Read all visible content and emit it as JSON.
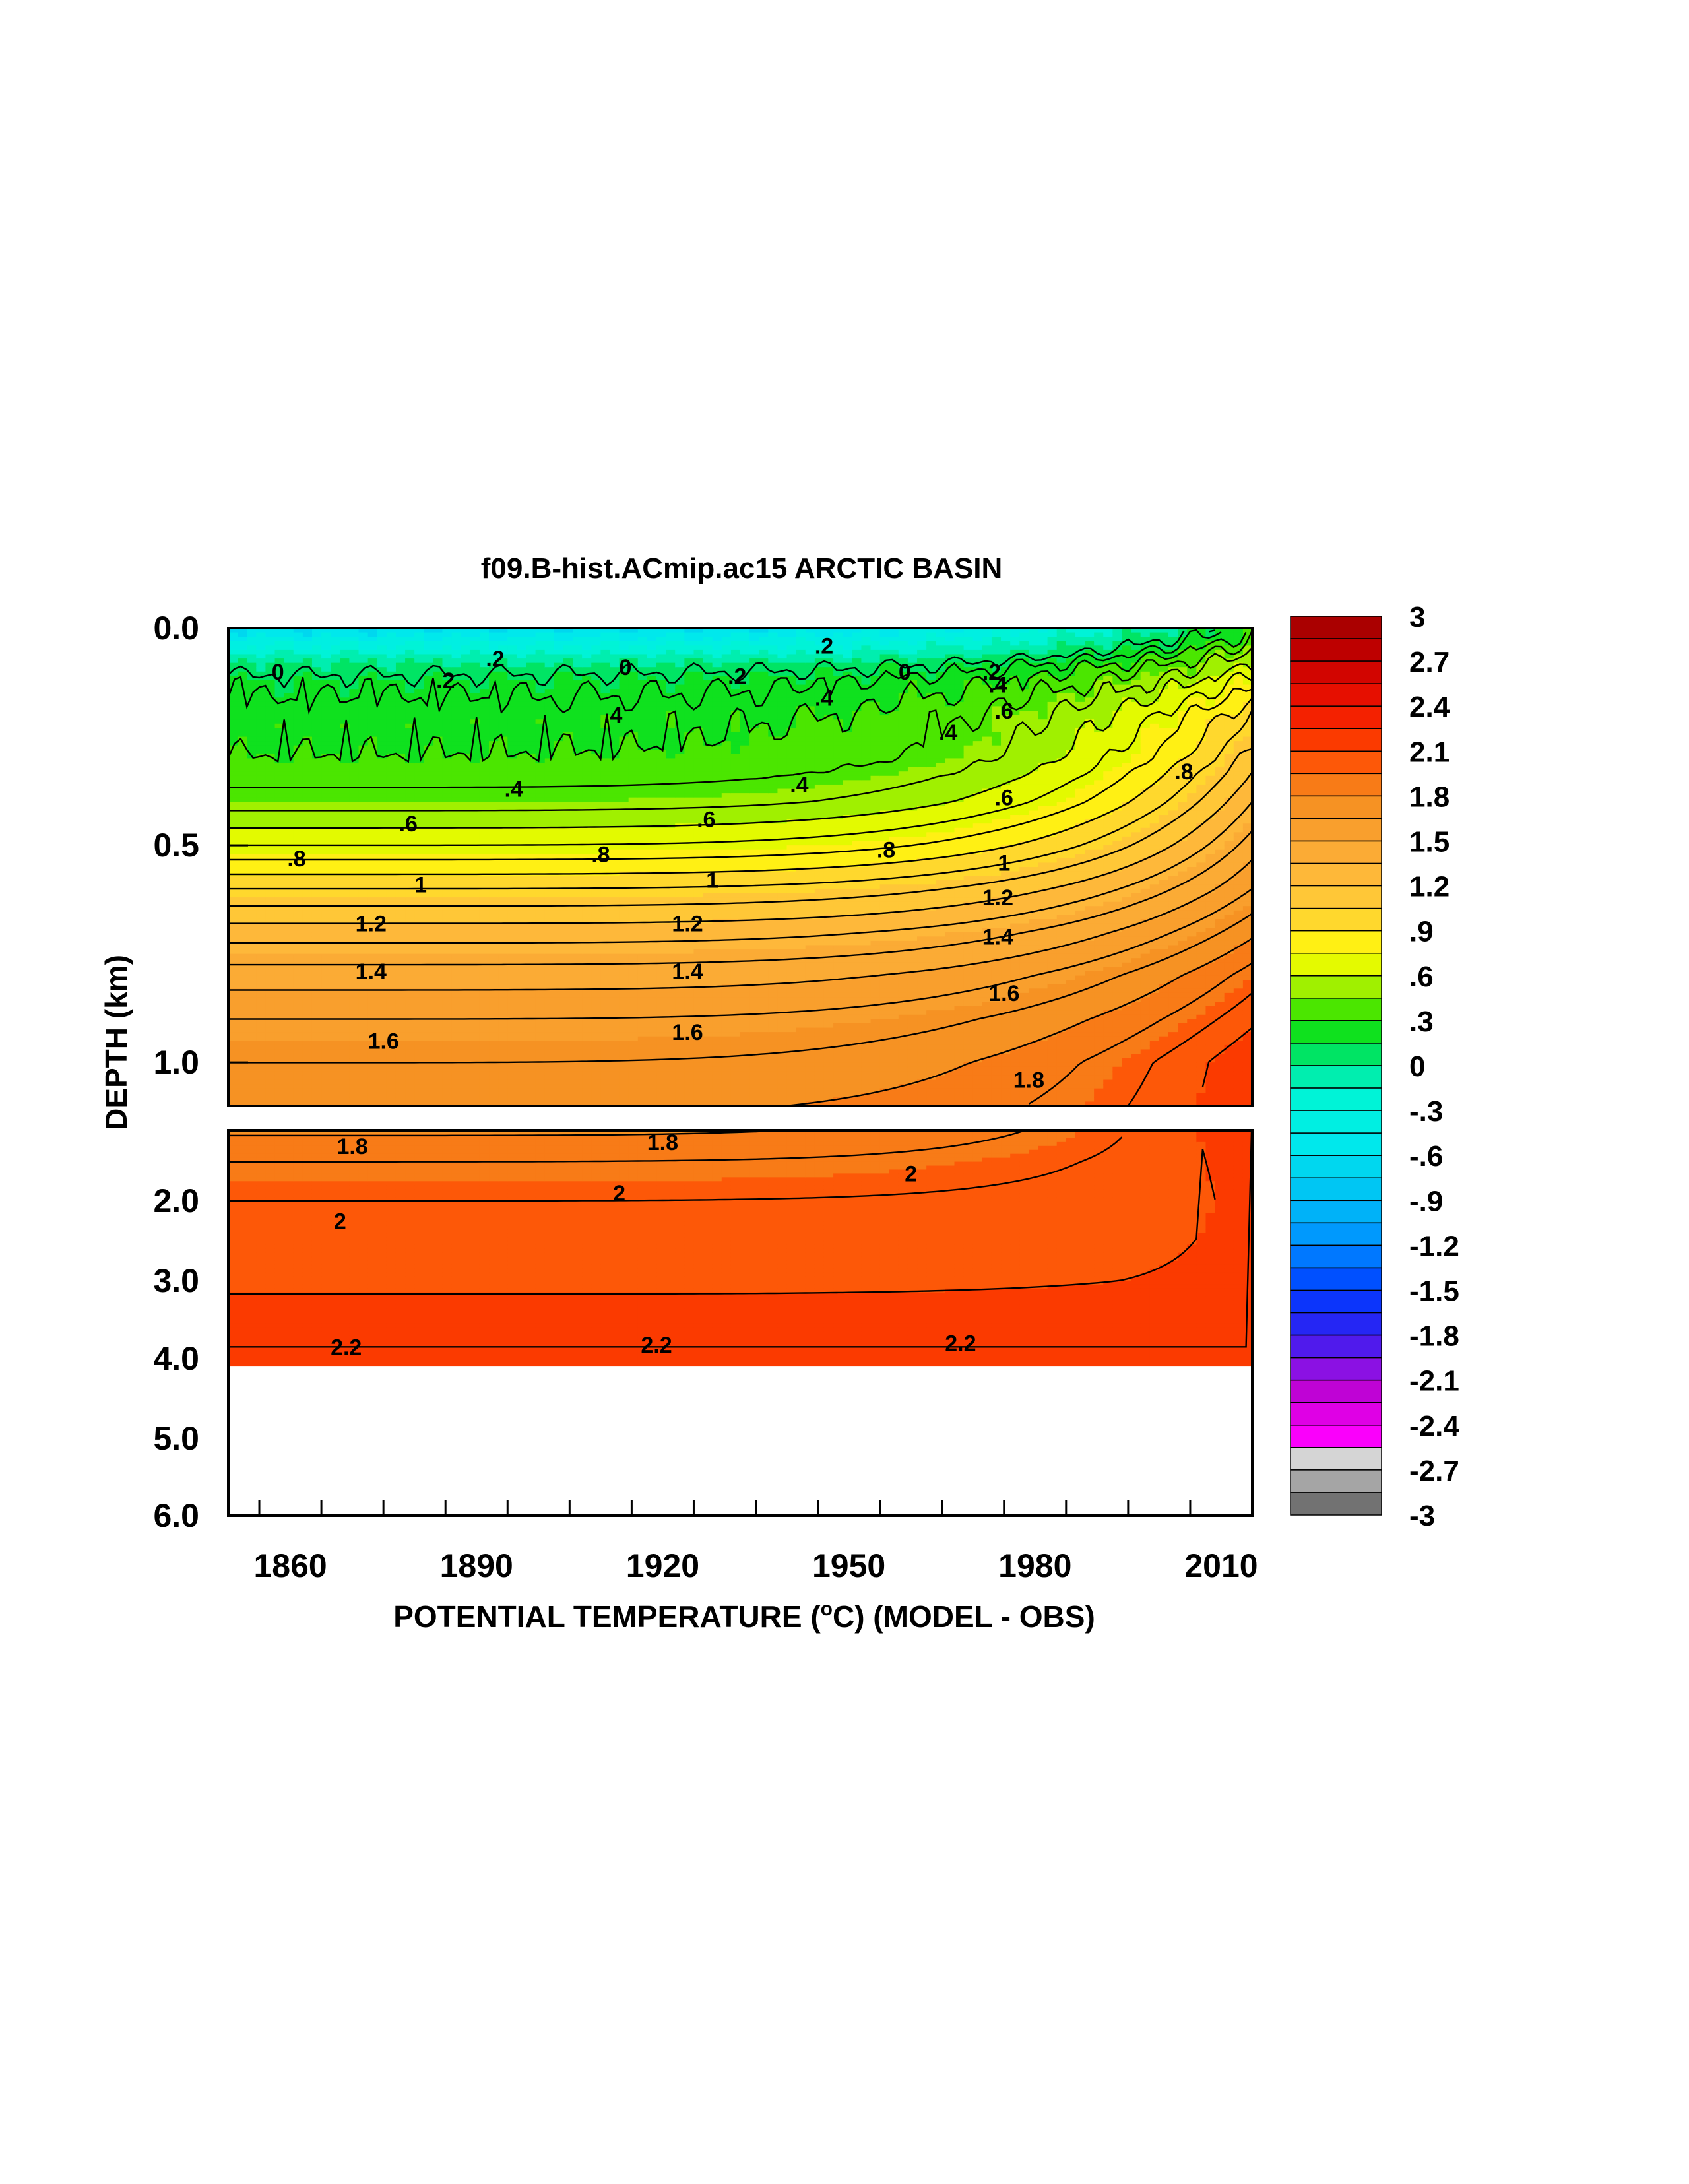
{
  "chart_data": {
    "type": "heatmap",
    "title": "f09.B-hist.ACmip.ac15 ARCTIC BASIN",
    "xlabel": "POTENTIAL TEMPERATURE (",
    "xlabel_unit_sup": "o",
    "xlabel_unit_main": "C",
    "xlabel_tail": ") (MODEL - OBS)",
    "ylabel": "DEPTH (km)",
    "x_range": [
      1850,
      2015
    ],
    "x_ticks": [
      {
        "value": 1860,
        "label": "1860"
      },
      {
        "value": 1890,
        "label": "1890"
      },
      {
        "value": 1920,
        "label": "1920"
      },
      {
        "value": 1950,
        "label": "1950"
      },
      {
        "value": 1980,
        "label": "1980"
      },
      {
        "value": 2010,
        "label": "2010"
      }
    ],
    "top_panel": {
      "y_range": [
        0.0,
        1.1
      ],
      "y_ticks": [
        {
          "value": 0.0,
          "label": "0.0"
        },
        {
          "value": 0.5,
          "label": "0.5"
        },
        {
          "value": 1.0,
          "label": "1.0"
        }
      ]
    },
    "bottom_panel": {
      "y_range": [
        1.1,
        6.0
      ],
      "y_ticks": [
        {
          "value": 2.0,
          "label": "2.0"
        },
        {
          "value": 3.0,
          "label": "3.0"
        },
        {
          "value": 4.0,
          "label": "4.0"
        },
        {
          "value": 5.0,
          "label": "5.0"
        },
        {
          "value": 6.0,
          "label": "6.0"
        }
      ],
      "data_bottom_depth": 4.1
    },
    "colorbar": {
      "min": -3,
      "max": 3,
      "step": 0.15,
      "labels": [
        "3",
        "2.7",
        "2.4",
        "2.1",
        "1.8",
        "1.5",
        "1.2",
        ".9",
        ".6",
        ".3",
        "0",
        "-.3",
        "-.6",
        "-.9",
        "-1.2",
        "-1.5",
        "-1.8",
        "-2.1",
        "-2.4",
        "-2.7",
        "-3"
      ]
    },
    "profile_1850": [
      {
        "depth": 0.0,
        "value": -0.6
      },
      {
        "depth": 0.03,
        "value": -0.4
      },
      {
        "depth": 0.08,
        "value": 0.0
      },
      {
        "depth": 0.12,
        "value": 0.15
      },
      {
        "depth": 0.2,
        "value": 0.25
      },
      {
        "depth": 0.3,
        "value": 0.3
      },
      {
        "depth": 0.4,
        "value": 0.45
      },
      {
        "depth": 0.5,
        "value": 0.7
      },
      {
        "depth": 0.6,
        "value": 1.0
      },
      {
        "depth": 0.7,
        "value": 1.25
      },
      {
        "depth": 0.8,
        "value": 1.45
      },
      {
        "depth": 0.9,
        "value": 1.6
      },
      {
        "depth": 1.0,
        "value": 1.7
      },
      {
        "depth": 1.1,
        "value": 1.78
      },
      {
        "depth": 1.5,
        "value": 1.9
      },
      {
        "depth": 2.0,
        "value": 2.0
      },
      {
        "depth": 3.0,
        "value": 2.08
      },
      {
        "depth": 3.6,
        "value": 2.15
      },
      {
        "depth": 4.1,
        "value": 2.25
      }
    ],
    "profile_2015": [
      {
        "depth": 0.0,
        "value": 0.3
      },
      {
        "depth": 0.08,
        "value": 0.6
      },
      {
        "depth": 0.2,
        "value": 1.0
      },
      {
        "depth": 0.4,
        "value": 1.3
      },
      {
        "depth": 0.6,
        "value": 1.6
      },
      {
        "depth": 0.8,
        "value": 1.95
      },
      {
        "depth": 1.0,
        "value": 2.2
      },
      {
        "depth": 1.1,
        "value": 2.2
      },
      {
        "depth": 1.5,
        "value": 2.15
      },
      {
        "depth": 2.0,
        "value": 2.12
      },
      {
        "depth": 3.0,
        "value": 2.12
      },
      {
        "depth": 3.6,
        "value": 2.15
      },
      {
        "depth": 4.1,
        "value": 2.25
      }
    ],
    "contour_labels": [
      {
        "text": "0",
        "year": 1858,
        "depth": 0.1
      },
      {
        "text": "0",
        "year": 1914,
        "depth": 0.09
      },
      {
        "text": "0",
        "year": 1959,
        "depth": 0.1
      },
      {
        "text": ".2",
        "year": 1893,
        "depth": 0.07
      },
      {
        "text": ".2",
        "year": 1885,
        "depth": 0.12
      },
      {
        "text": ".2",
        "year": 1932,
        "depth": 0.11
      },
      {
        "text": ".2",
        "year": 1946,
        "depth": 0.04
      },
      {
        "text": ".2",
        "year": 1973,
        "depth": 0.1
      },
      {
        "text": ".4",
        "year": 1912,
        "depth": 0.2
      },
      {
        "text": ".4",
        "year": 1946,
        "depth": 0.16
      },
      {
        "text": ".4",
        "year": 1966,
        "depth": 0.24
      },
      {
        "text": ".4",
        "year": 1974,
        "depth": 0.13
      },
      {
        "text": ".4",
        "year": 1896,
        "depth": 0.37
      },
      {
        "text": ".4",
        "year": 1942,
        "depth": 0.36
      },
      {
        "text": ".6",
        "year": 1975,
        "depth": 0.19
      },
      {
        "text": ".6",
        "year": 1879,
        "depth": 0.45
      },
      {
        "text": ".6",
        "year": 1927,
        "depth": 0.44
      },
      {
        "text": ".6",
        "year": 1975,
        "depth": 0.39
      },
      {
        "text": ".8",
        "year": 1861,
        "depth": 0.53
      },
      {
        "text": ".8",
        "year": 1910,
        "depth": 0.52
      },
      {
        "text": ".8",
        "year": 1956,
        "depth": 0.51
      },
      {
        "text": ".8",
        "year": 2004,
        "depth": 0.33
      },
      {
        "text": "1",
        "year": 1881,
        "depth": 0.59
      },
      {
        "text": "1",
        "year": 1928,
        "depth": 0.58
      },
      {
        "text": "1",
        "year": 1975,
        "depth": 0.54
      },
      {
        "text": "1.2",
        "year": 1873,
        "depth": 0.68
      },
      {
        "text": "1.2",
        "year": 1924,
        "depth": 0.68
      },
      {
        "text": "1.2",
        "year": 1974,
        "depth": 0.62
      },
      {
        "text": "1.4",
        "year": 1873,
        "depth": 0.79
      },
      {
        "text": "1.4",
        "year": 1924,
        "depth": 0.79
      },
      {
        "text": "1.4",
        "year": 1974,
        "depth": 0.71
      },
      {
        "text": "1.6",
        "year": 1875,
        "depth": 0.95
      },
      {
        "text": "1.6",
        "year": 1924,
        "depth": 0.93
      },
      {
        "text": "1.6",
        "year": 1975,
        "depth": 0.84
      },
      {
        "text": "1.8",
        "year": 1979,
        "depth": 1.04
      },
      {
        "text": "1.8",
        "year": 1870,
        "depth": 1.3
      },
      {
        "text": "1.8",
        "year": 1920,
        "depth": 1.25
      },
      {
        "text": "2",
        "year": 1868,
        "depth": 2.25
      },
      {
        "text": "2",
        "year": 1913,
        "depth": 1.9
      },
      {
        "text": "2",
        "year": 1960,
        "depth": 1.65
      },
      {
        "text": "2.2",
        "year": 1869,
        "depth": 3.85
      },
      {
        "text": "2.2",
        "year": 1919,
        "depth": 3.82
      },
      {
        "text": "2.2",
        "year": 1968,
        "depth": 3.8
      }
    ]
  }
}
